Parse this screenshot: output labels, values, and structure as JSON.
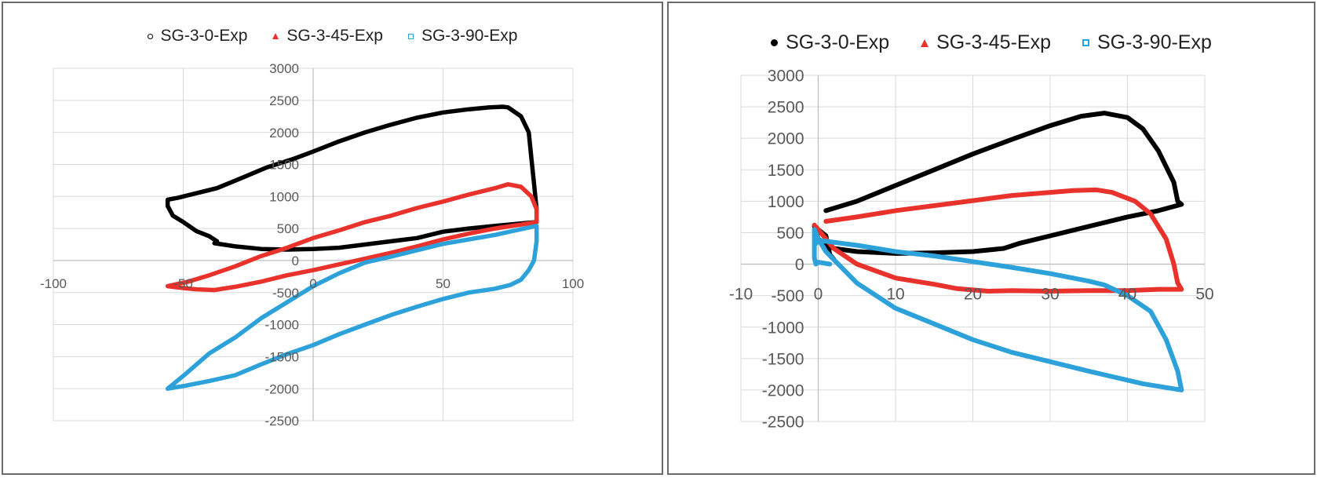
{
  "chart_data": [
    {
      "type": "scatter",
      "title": "",
      "xlabel": "",
      "ylabel": "",
      "xlim": [
        -100,
        100
      ],
      "ylim": [
        -2500,
        3000
      ],
      "x_ticks": [
        "-100",
        "-50",
        "0",
        "50",
        "100"
      ],
      "y_ticks": [
        "-2500",
        "-2000",
        "-1500",
        "-1000",
        "-500",
        "0",
        "500",
        "1000",
        "1500",
        "2000",
        "2500",
        "3000"
      ],
      "legend_position": "top",
      "series": [
        {
          "name": "SG-3-0-Exp",
          "marker": "circle",
          "color": "#000000",
          "points": [
            [
              -56,
              950
            ],
            [
              -52,
              980
            ],
            [
              -45,
              1050
            ],
            [
              -37,
              1130
            ],
            [
              -28,
              1280
            ],
            [
              -18,
              1450
            ],
            [
              -8,
              1580
            ],
            [
              0,
              1700
            ],
            [
              10,
              1860
            ],
            [
              20,
              2000
            ],
            [
              30,
              2120
            ],
            [
              40,
              2230
            ],
            [
              50,
              2310
            ],
            [
              60,
              2360
            ],
            [
              68,
              2390
            ],
            [
              73,
              2400
            ],
            [
              75,
              2390
            ],
            [
              80,
              2250
            ],
            [
              83,
              2000
            ],
            [
              84,
              1600
            ],
            [
              85,
              1200
            ],
            [
              86,
              800
            ],
            [
              86,
              600
            ],
            [
              75,
              560
            ],
            [
              60,
              500
            ],
            [
              50,
              450
            ],
            [
              40,
              350
            ],
            [
              30,
              300
            ],
            [
              20,
              250
            ],
            [
              10,
              200
            ],
            [
              0,
              180
            ],
            [
              -10,
              170
            ],
            [
              -20,
              180
            ],
            [
              -30,
              220
            ],
            [
              -38,
              270
            ],
            [
              -37,
              300
            ],
            [
              -40,
              380
            ],
            [
              -45,
              460
            ],
            [
              -50,
              600
            ],
            [
              -54,
              700
            ],
            [
              -56,
              850
            ],
            [
              -56,
              950
            ]
          ]
        },
        {
          "name": "SG-3-45-Exp",
          "marker": "triangle",
          "color": "#e8322b",
          "points": [
            [
              -56,
              -400
            ],
            [
              -48,
              -330
            ],
            [
              -40,
              -230
            ],
            [
              -30,
              -90
            ],
            [
              -20,
              70
            ],
            [
              -10,
              200
            ],
            [
              0,
              350
            ],
            [
              10,
              470
            ],
            [
              20,
              600
            ],
            [
              30,
              700
            ],
            [
              40,
              820
            ],
            [
              50,
              920
            ],
            [
              60,
              1030
            ],
            [
              70,
              1130
            ],
            [
              75,
              1190
            ],
            [
              80,
              1150
            ],
            [
              84,
              1000
            ],
            [
              86,
              800
            ],
            [
              86,
              600
            ],
            [
              80,
              560
            ],
            [
              70,
              500
            ],
            [
              60,
              420
            ],
            [
              50,
              330
            ],
            [
              40,
              220
            ],
            [
              30,
              120
            ],
            [
              20,
              30
            ],
            [
              10,
              -60
            ],
            [
              0,
              -150
            ],
            [
              -10,
              -230
            ],
            [
              -20,
              -330
            ],
            [
              -30,
              -410
            ],
            [
              -38,
              -460
            ],
            [
              -45,
              -450
            ],
            [
              -50,
              -430
            ],
            [
              -56,
              -400
            ]
          ]
        },
        {
          "name": "SG-3-90-Exp",
          "marker": "square",
          "color": "#2ca1da",
          "points": [
            [
              -56,
              -2000
            ],
            [
              -50,
              -1800
            ],
            [
              -40,
              -1450
            ],
            [
              -30,
              -1200
            ],
            [
              -20,
              -900
            ],
            [
              -10,
              -650
            ],
            [
              0,
              -400
            ],
            [
              10,
              -200
            ],
            [
              20,
              -30
            ],
            [
              30,
              60
            ],
            [
              40,
              160
            ],
            [
              50,
              260
            ],
            [
              60,
              330
            ],
            [
              70,
              400
            ],
            [
              78,
              470
            ],
            [
              86,
              540
            ],
            [
              86,
              300
            ],
            [
              85,
              0
            ],
            [
              83,
              -150
            ],
            [
              80,
              -300
            ],
            [
              76,
              -380
            ],
            [
              70,
              -440
            ],
            [
              60,
              -500
            ],
            [
              50,
              -600
            ],
            [
              40,
              -720
            ],
            [
              30,
              -850
            ],
            [
              20,
              -1000
            ],
            [
              10,
              -1150
            ],
            [
              0,
              -1320
            ],
            [
              -10,
              -1460
            ],
            [
              -20,
              -1620
            ],
            [
              -30,
              -1790
            ],
            [
              -40,
              -1880
            ],
            [
              -50,
              -1960
            ],
            [
              -56,
              -2000
            ]
          ]
        }
      ]
    },
    {
      "type": "scatter",
      "title": "",
      "xlabel": "",
      "ylabel": "",
      "xlim": [
        -10,
        50
      ],
      "ylim": [
        -2500,
        3000
      ],
      "x_ticks": [
        "-10",
        "0",
        "10",
        "20",
        "30",
        "40",
        "50"
      ],
      "y_ticks": [
        "-2500",
        "-2000",
        "-1500",
        "-1000",
        "-500",
        "0",
        "500",
        "1000",
        "1500",
        "2000",
        "2500",
        "3000"
      ],
      "legend_position": "top",
      "series": [
        {
          "name": "SG-3-0-Exp",
          "marker": "circle",
          "color": "#000000",
          "points": [
            [
              1,
              850
            ],
            [
              5,
              1000
            ],
            [
              10,
              1250
            ],
            [
              15,
              1500
            ],
            [
              20,
              1750
            ],
            [
              25,
              1980
            ],
            [
              30,
              2200
            ],
            [
              34,
              2350
            ],
            [
              37,
              2400
            ],
            [
              40,
              2330
            ],
            [
              42,
              2150
            ],
            [
              44,
              1800
            ],
            [
              46,
              1300
            ],
            [
              46.5,
              1000
            ],
            [
              47,
              950
            ],
            [
              44,
              850
            ],
            [
              40,
              750
            ],
            [
              35,
              600
            ],
            [
              30,
              450
            ],
            [
              26,
              330
            ],
            [
              24,
              250
            ],
            [
              20,
              200
            ],
            [
              15,
              180
            ],
            [
              10,
              170
            ],
            [
              5,
              200
            ],
            [
              2,
              250
            ],
            [
              0,
              400
            ],
            [
              -0.5,
              600
            ],
            [
              1,
              450
            ],
            [
              1.5,
              150
            ],
            [
              2,
              80
            ]
          ]
        },
        {
          "name": "SG-3-45-Exp",
          "marker": "triangle",
          "color": "#e8322b",
          "points": [
            [
              1,
              680
            ],
            [
              5,
              750
            ],
            [
              10,
              850
            ],
            [
              15,
              930
            ],
            [
              20,
              1010
            ],
            [
              25,
              1090
            ],
            [
              30,
              1140
            ],
            [
              33,
              1170
            ],
            [
              36,
              1180
            ],
            [
              38,
              1140
            ],
            [
              41,
              1000
            ],
            [
              43,
              800
            ],
            [
              45,
              400
            ],
            [
              46,
              0
            ],
            [
              46.5,
              -300
            ],
            [
              47,
              -400
            ],
            [
              44,
              -400
            ],
            [
              40,
              -420
            ],
            [
              35,
              -420
            ],
            [
              30,
              -430
            ],
            [
              25,
              -420
            ],
            [
              22,
              -430
            ],
            [
              18,
              -390
            ],
            [
              15,
              -320
            ],
            [
              10,
              -220
            ],
            [
              5,
              0
            ],
            [
              2,
              250
            ],
            [
              0,
              550
            ],
            [
              -0.5,
              620
            ]
          ]
        },
        {
          "name": "SG-3-90-Exp",
          "marker": "square",
          "color": "#2ca1da",
          "points": [
            [
              -0.5,
              300
            ],
            [
              0,
              380
            ],
            [
              5,
              300
            ],
            [
              10,
              200
            ],
            [
              15,
              130
            ],
            [
              20,
              40
            ],
            [
              25,
              -50
            ],
            [
              30,
              -150
            ],
            [
              35,
              -270
            ],
            [
              37,
              -330
            ],
            [
              40,
              -500
            ],
            [
              43,
              -750
            ],
            [
              45,
              -1200
            ],
            [
              46.5,
              -1700
            ],
            [
              47,
              -2000
            ],
            [
              42,
              -1900
            ],
            [
              35,
              -1700
            ],
            [
              30,
              -1550
            ],
            [
              25,
              -1400
            ],
            [
              20,
              -1200
            ],
            [
              15,
              -950
            ],
            [
              10,
              -700
            ],
            [
              5,
              -300
            ],
            [
              1,
              200
            ],
            [
              0,
              400
            ],
            [
              -0.5,
              550
            ],
            [
              -0.5,
              100
            ],
            [
              -0.3,
              0
            ],
            [
              0,
              30
            ],
            [
              1.5,
              0
            ]
          ]
        }
      ]
    }
  ]
}
